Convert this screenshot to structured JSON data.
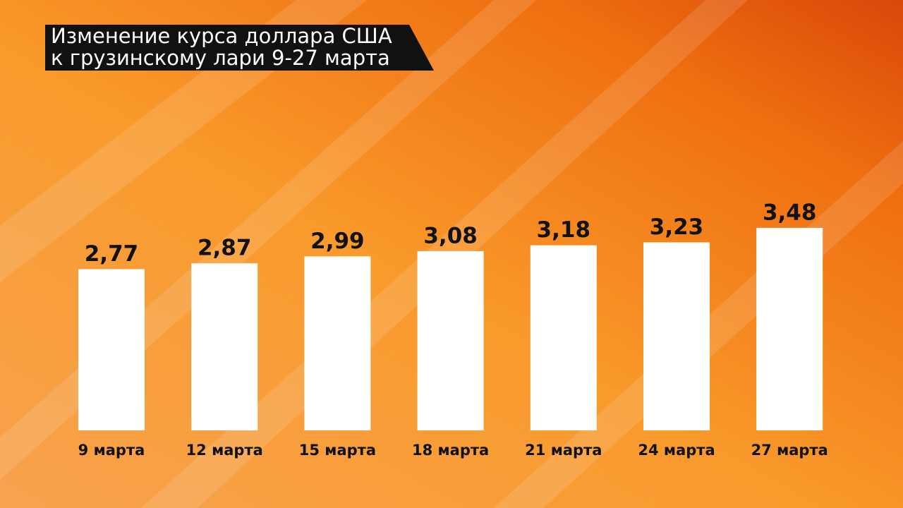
{
  "chart_data": {
    "type": "bar",
    "title": [
      "Изменение курса доллара США",
      "к грузинскому лари 9-27 марта"
    ],
    "categories": [
      "9 марта",
      "12 марта",
      "15 марта",
      "18 марта",
      "21 марта",
      "24 марта",
      "27 марта"
    ],
    "values": [
      2.77,
      2.87,
      2.99,
      3.08,
      3.18,
      3.23,
      3.48
    ],
    "value_labels": [
      "2,77",
      "2,87",
      "2,99",
      "3,08",
      "3,18",
      "3,23",
      "3,48"
    ],
    "color": "#ffffff"
  }
}
